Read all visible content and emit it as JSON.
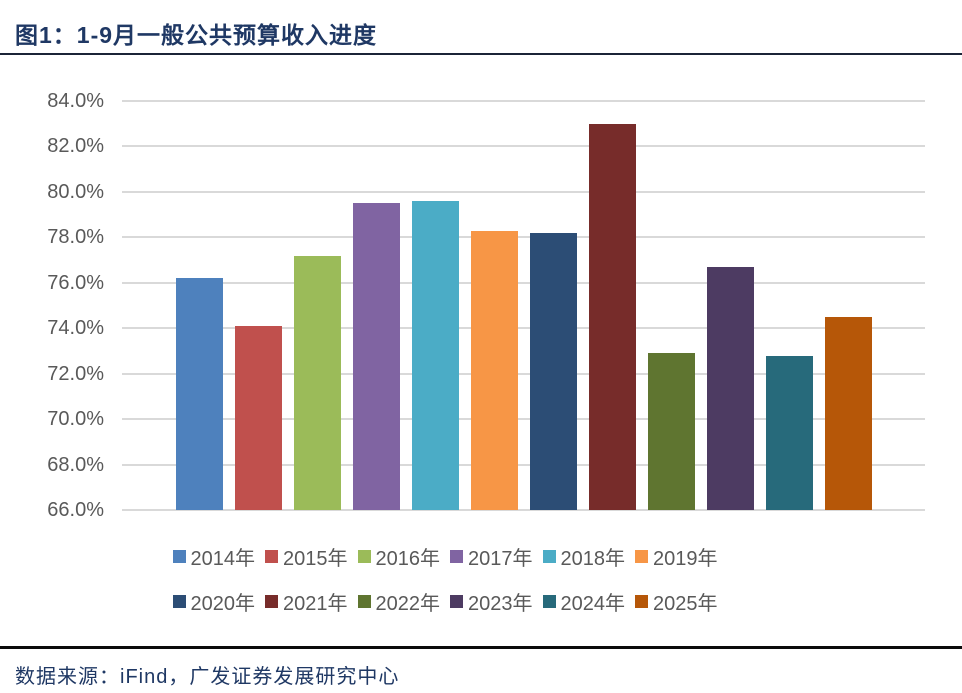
{
  "title": {
    "text": "图1：1-9月一般公共预算收入进度"
  },
  "footer": {
    "text": "数据来源：iFind，广发证券发展研究中心"
  },
  "palette": {
    "title_color": "#1F3864",
    "axis_text_color": "#595959",
    "gridline_color": "#D9D9D9"
  },
  "chart_data": {
    "type": "bar",
    "title": "图1：1-9月一般公共预算收入进度",
    "xlabel": "",
    "ylabel": "",
    "categories": [
      "2014年",
      "2015年",
      "2016年",
      "2017年",
      "2018年",
      "2019年",
      "2020年",
      "2021年",
      "2022年",
      "2023年",
      "2024年",
      "2025年"
    ],
    "values": [
      76.2,
      74.1,
      77.2,
      79.5,
      79.6,
      78.3,
      78.2,
      83.0,
      72.9,
      76.7,
      72.8,
      74.5
    ],
    "colors": [
      "#4E81BD",
      "#C0504D",
      "#9BBB59",
      "#8064A2",
      "#4BACC6",
      "#F79646",
      "#2C4D75",
      "#772C2A",
      "#5F7530",
      "#4D3B62",
      "#276A7B",
      "#B65708"
    ],
    "ylim": [
      66,
      84
    ],
    "ytick_step": 2,
    "ytick_suffix": "%",
    "ytick_decimals": 1,
    "grid": true,
    "legend_position": "bottom",
    "legend_rows": [
      [
        "2014年",
        "2015年",
        "2016年",
        "2017年",
        "2018年",
        "2019年"
      ],
      [
        "2020年",
        "2021年",
        "2022年",
        "2023年",
        "2024年",
        "2025年"
      ]
    ],
    "source_note": "数据来源：iFind，广发证券发展研究中心"
  }
}
